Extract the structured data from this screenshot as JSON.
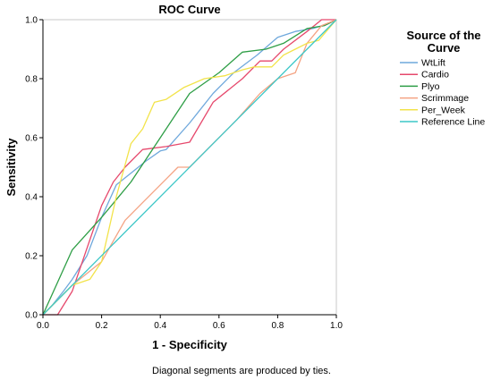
{
  "chart_data": {
    "type": "line",
    "title": "ROC Curve",
    "xlabel": "1 - Specificity",
    "ylabel": "Sensitivity",
    "footnote": "Diagonal segments are produced by ties.",
    "xlim": [
      0,
      1
    ],
    "ylim": [
      0,
      1
    ],
    "xticks": [
      "0.0",
      "0.2",
      "0.4",
      "0.6",
      "0.8",
      "1.0"
    ],
    "yticks": [
      "0.0",
      "0.2",
      "0.4",
      "0.6",
      "0.8",
      "1.0"
    ],
    "grid": false,
    "legend": {
      "title_line1": "Source of the",
      "title_line2": "Curve",
      "placement": "right"
    },
    "series": [
      {
        "name": "WtLift",
        "color": "#6fa8dc",
        "x": [
          0,
          0.03,
          0.07,
          0.1,
          0.15,
          0.2,
          0.25,
          0.3,
          0.35,
          0.4,
          0.42,
          0.5,
          0.58,
          0.65,
          0.73,
          0.8,
          0.86,
          0.92,
          0.97,
          1.0
        ],
        "y": [
          0,
          0.03,
          0.08,
          0.12,
          0.2,
          0.33,
          0.44,
          0.48,
          0.52,
          0.555,
          0.56,
          0.65,
          0.75,
          0.82,
          0.88,
          0.94,
          0.96,
          0.97,
          0.985,
          1.0
        ]
      },
      {
        "name": "Cardio",
        "color": "#e6486c",
        "x": [
          0,
          0.05,
          0.1,
          0.2,
          0.24,
          0.28,
          0.34,
          0.42,
          0.5,
          0.58,
          0.68,
          0.74,
          0.78,
          0.82,
          0.9,
          0.95,
          1.0
        ],
        "y": [
          0,
          0,
          0.08,
          0.37,
          0.45,
          0.5,
          0.56,
          0.57,
          0.585,
          0.72,
          0.8,
          0.86,
          0.86,
          0.9,
          0.96,
          1.0,
          1.0
        ]
      },
      {
        "name": "Plyo",
        "color": "#2e9e46",
        "x": [
          0,
          0.1,
          0.2,
          0.3,
          0.4,
          0.5,
          0.6,
          0.68,
          0.76,
          0.82,
          0.9,
          0.96,
          1.0
        ],
        "y": [
          0,
          0.22,
          0.33,
          0.45,
          0.6,
          0.75,
          0.82,
          0.89,
          0.9,
          0.92,
          0.97,
          0.98,
          1.0
        ]
      },
      {
        "name": "Scrimmage",
        "color": "#f4a383",
        "x": [
          0,
          0.1,
          0.2,
          0.28,
          0.34,
          0.42,
          0.46,
          0.5,
          0.58,
          0.66,
          0.74,
          0.8,
          0.86,
          0.9,
          0.95,
          1.0
        ],
        "y": [
          0,
          0.1,
          0.18,
          0.32,
          0.38,
          0.46,
          0.5,
          0.5,
          0.58,
          0.66,
          0.75,
          0.8,
          0.82,
          0.92,
          0.98,
          1.0
        ]
      },
      {
        "name": "Per_Week",
        "color": "#f2e34a",
        "x": [
          0,
          0.1,
          0.16,
          0.2,
          0.25,
          0.3,
          0.34,
          0.38,
          0.42,
          0.48,
          0.55,
          0.62,
          0.68,
          0.72,
          0.78,
          0.82,
          0.86,
          0.9,
          0.94,
          1.0
        ],
        "y": [
          0,
          0.1,
          0.12,
          0.18,
          0.4,
          0.58,
          0.63,
          0.72,
          0.73,
          0.77,
          0.8,
          0.81,
          0.83,
          0.84,
          0.84,
          0.88,
          0.9,
          0.92,
          0.93,
          1.0
        ]
      },
      {
        "name": "Reference Line",
        "color": "#3cc7c7",
        "x": [
          0,
          1
        ],
        "y": [
          0,
          1
        ]
      }
    ]
  }
}
